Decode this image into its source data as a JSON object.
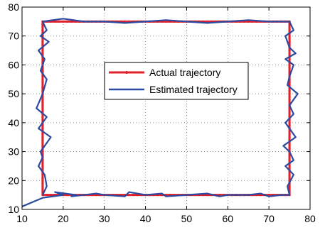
{
  "chart_data": {
    "type": "line",
    "title": "",
    "xlabel": "",
    "ylabel": "",
    "xlim": [
      10,
      80
    ],
    "ylim": [
      10,
      80
    ],
    "xticks": [
      10,
      20,
      30,
      40,
      50,
      60,
      70,
      80
    ],
    "yticks": [
      10,
      20,
      30,
      40,
      50,
      60,
      70,
      80
    ],
    "grid": true,
    "legend_position": "center",
    "series": [
      {
        "name": "Actual trajectory",
        "color": "#e0202a",
        "marker": "dot",
        "x": [
          15,
          75,
          75,
          15,
          15
        ],
        "y": [
          15,
          15,
          75,
          75,
          15
        ]
      },
      {
        "name": "Estimated trajectory",
        "color": "#2b4aa0",
        "x": [
          10,
          15,
          20,
          18,
          23,
          22,
          28,
          30,
          35,
          36,
          40,
          44,
          45,
          50,
          55,
          58,
          60,
          65,
          68,
          70,
          73,
          75,
          74.5,
          76,
          74,
          76,
          75,
          73.5,
          76.5,
          75,
          74,
          76,
          75,
          77,
          74.5,
          75,
          76,
          74,
          76.5,
          75,
          74,
          76,
          75,
          70,
          65,
          60,
          55,
          50,
          45,
          40,
          35,
          30,
          25,
          20,
          15,
          16,
          14.5,
          16.5,
          14,
          15.5,
          14.5,
          16,
          15,
          13.5,
          16,
          14,
          17,
          14.5,
          15,
          14,
          15.5,
          16,
          15
        ],
        "y": [
          11,
          14,
          15,
          16,
          15,
          14.5,
          15.5,
          15,
          14.5,
          16,
          15,
          15.5,
          14.5,
          15,
          15.5,
          14.5,
          15,
          15,
          15.5,
          14.5,
          15,
          15,
          18,
          22,
          25,
          27,
          30,
          32,
          35,
          38,
          40,
          43,
          46,
          50,
          53,
          56,
          60,
          62,
          64,
          66,
          70,
          72,
          75,
          75,
          75.5,
          75,
          74.5,
          75,
          75.5,
          75,
          74.5,
          75,
          75,
          76,
          75,
          72,
          70,
          68,
          65,
          62,
          58,
          55,
          50,
          45,
          42,
          38,
          35,
          30,
          28,
          25,
          22,
          18,
          15
        ]
      }
    ]
  }
}
